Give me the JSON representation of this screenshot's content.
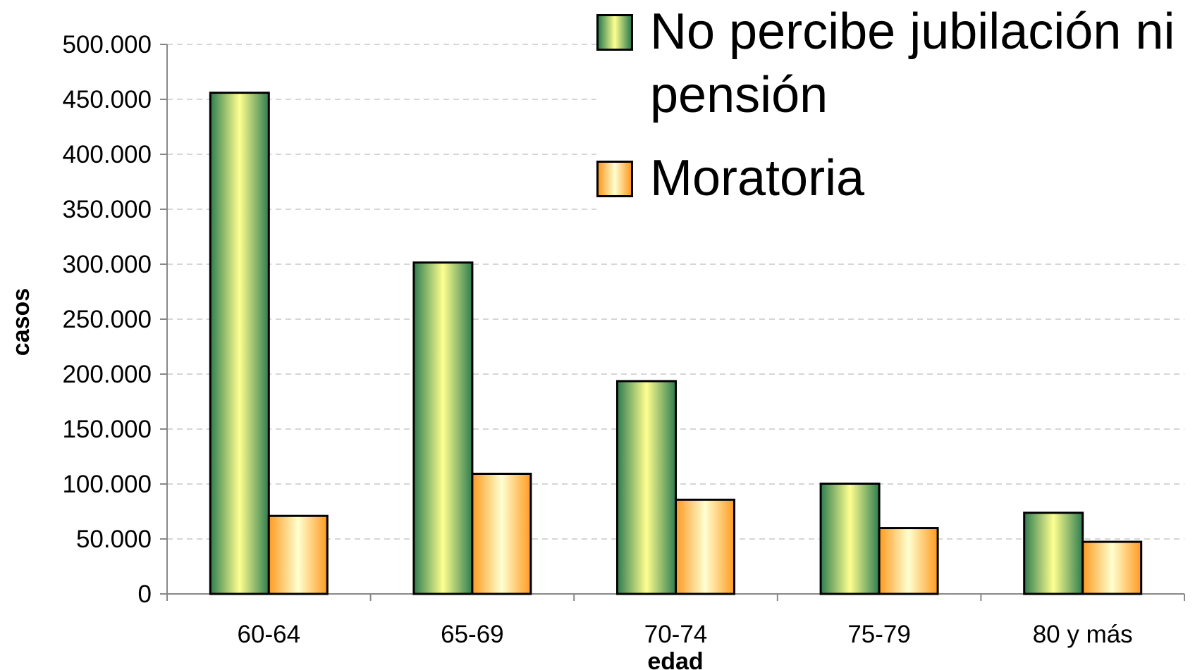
{
  "chart_data": {
    "type": "bar",
    "x_label": "edad",
    "y_label": "casos",
    "categories": [
      "60-64",
      "65-69",
      "70-74",
      "75-79",
      "80 y más"
    ],
    "series": [
      {
        "name": "No percibe jubilación ni pensión",
        "color": "#2e8b57",
        "values": [
          456000,
          301500,
          193600,
          100300,
          73800
        ]
      },
      {
        "name": "Moratoria",
        "color": "#ffa030",
        "values": [
          71000,
          109300,
          85700,
          59900,
          47400
        ]
      }
    ],
    "ylim": [
      0,
      500000
    ],
    "yticks": [
      0,
      {
        "value": 50000,
        "label": "50.000"
      },
      {
        "value": 100000,
        "label": "100.000"
      },
      {
        "value": 150000,
        "label": "150.000"
      },
      {
        "value": 200000,
        "label": "200.000"
      },
      {
        "value": 250000,
        "label": "250.000"
      },
      {
        "value": 300000,
        "label": "300.000"
      },
      {
        "value": 350000,
        "label": "350.000"
      },
      {
        "value": 400000,
        "label": "400.000"
      },
      {
        "value": 450000,
        "label": "450.000"
      },
      {
        "value": 500000,
        "label": "500.000"
      }
    ],
    "grid": true,
    "legend": "top-right"
  }
}
